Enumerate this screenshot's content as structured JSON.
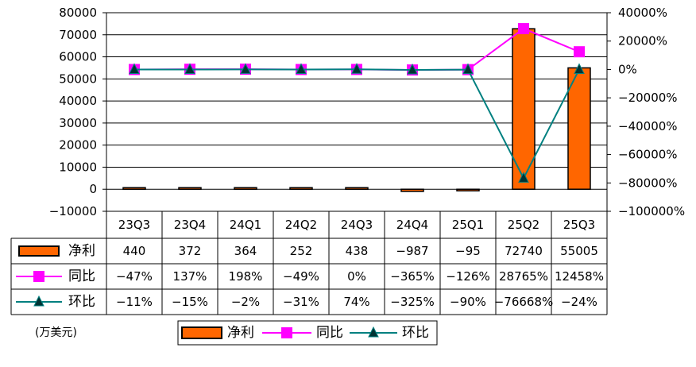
{
  "chart_data": {
    "type": "bar",
    "categories": [
      "23Q3",
      "23Q4",
      "24Q1",
      "24Q2",
      "24Q3",
      "24Q4",
      "25Q1",
      "25Q2",
      "25Q3"
    ],
    "y_left": {
      "ticks": [
        "80000",
        "70000",
        "60000",
        "50000",
        "40000",
        "30000",
        "20000",
        "10000",
        "0",
        "−10000"
      ],
      "ylim": [
        -10000,
        80000
      ]
    },
    "y_right": {
      "ticks": [
        "40000%",
        "20000%",
        "0%",
        "−20000%",
        "−40000%",
        "−60000%",
        "−80000%",
        "−100000%"
      ],
      "ylim": [
        -100000,
        40000
      ]
    },
    "unit_note": "(万美元)",
    "series": [
      {
        "name": "净利",
        "type": "bar",
        "color": "#ff6600",
        "values": [
          440,
          372,
          364,
          252,
          438,
          -987,
          -95,
          72740,
          55005
        ],
        "labels": [
          "440",
          "372",
          "364",
          "252",
          "438",
          "−987",
          "−95",
          "72740",
          "55005"
        ]
      },
      {
        "name": "同比",
        "type": "line",
        "axis": "right",
        "color": "#ff00ff",
        "marker": "square",
        "values": [
          -47,
          137,
          198,
          -49,
          0,
          -365,
          -126,
          28765,
          12458
        ],
        "labels": [
          "−47%",
          "137%",
          "198%",
          "−49%",
          "0%",
          "−365%",
          "−126%",
          "28765%",
          "12458%"
        ]
      },
      {
        "name": "环比",
        "type": "line",
        "axis": "right",
        "color": "#008080",
        "marker": "triangle",
        "values": [
          -11,
          -15,
          -2,
          -31,
          74,
          -325,
          -90,
          -76668,
          -24
        ],
        "labels": [
          "−11%",
          "−15%",
          "−2%",
          "−31%",
          "74%",
          "−325%",
          "−90%",
          "−76668%",
          "−24%"
        ]
      }
    ],
    "legend_position": "bottom",
    "grid": true
  }
}
